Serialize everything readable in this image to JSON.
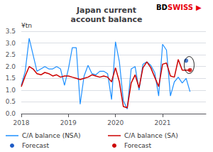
{
  "chart_data": {
    "type": "line",
    "title": "Japan current\naccount balance",
    "ylabel": "¥tn",
    "xlim": [
      2018.0,
      2021.92
    ],
    "ylim": [
      0.0,
      3.5
    ],
    "yticks": [
      {
        "value": 0.0,
        "label": "0.0"
      },
      {
        "value": 0.5,
        "label": "0.5"
      },
      {
        "value": 1.0,
        "label": "1.0"
      },
      {
        "value": 1.5,
        "label": "1.5"
      },
      {
        "value": 2.0,
        "label": "2.0"
      },
      {
        "value": 2.5,
        "label": "2.5"
      },
      {
        "value": 3.0,
        "label": "3.0"
      },
      {
        "value": 3.5,
        "label": "3.5"
      }
    ],
    "xticks": [
      2018,
      2019,
      2020,
      2021
    ],
    "grid": true,
    "legend": "lower left",
    "series": [
      {
        "name": "C/A balance (NSA)",
        "type": "line",
        "color": "#1e90ff",
        "x": [
          2018.0,
          2018.083,
          2018.167,
          2018.25,
          2018.333,
          2018.417,
          2018.5,
          2018.583,
          2018.667,
          2018.75,
          2018.833,
          2018.917,
          2019.0,
          2019.083,
          2019.167,
          2019.25,
          2019.333,
          2019.417,
          2019.5,
          2019.583,
          2019.667,
          2019.75,
          2019.833,
          2019.917,
          2020.0,
          2020.083,
          2020.167,
          2020.25,
          2020.333,
          2020.417,
          2020.5,
          2020.583,
          2020.667,
          2020.75,
          2020.833,
          2020.917,
          2021.0,
          2021.083,
          2021.167,
          2021.25,
          2021.333,
          2021.417,
          2021.5,
          2021.583
        ],
        "values": [
          1.2,
          1.8,
          3.2,
          2.5,
          1.8,
          1.9,
          2.0,
          1.9,
          1.9,
          2.0,
          1.9,
          1.2,
          1.9,
          2.8,
          2.8,
          0.4,
          1.6,
          2.05,
          1.7,
          1.65,
          1.8,
          1.8,
          1.7,
          0.6,
          3.05,
          2.2,
          0.55,
          0.2,
          1.9,
          2.0,
          1.0,
          2.1,
          2.2,
          2.05,
          1.75,
          0.75,
          2.95,
          2.7,
          0.75,
          1.35,
          1.55,
          1.3,
          1.5,
          0.93
        ]
      },
      {
        "name": "C/A balance (SA)",
        "type": "line",
        "color": "#cc0000",
        "x": [
          2018.0,
          2018.083,
          2018.167,
          2018.25,
          2018.333,
          2018.417,
          2018.5,
          2018.583,
          2018.667,
          2018.75,
          2018.833,
          2018.917,
          2019.0,
          2019.083,
          2019.167,
          2019.25,
          2019.333,
          2019.417,
          2019.5,
          2019.583,
          2019.667,
          2019.75,
          2019.833,
          2019.917,
          2020.0,
          2020.083,
          2020.167,
          2020.25,
          2020.333,
          2020.417,
          2020.5,
          2020.583,
          2020.667,
          2020.75,
          2020.833,
          2020.917,
          2021.0,
          2021.083,
          2021.167,
          2021.25,
          2021.333,
          2021.417,
          2021.5,
          2021.583
        ],
        "values": [
          1.15,
          1.6,
          2.0,
          1.9,
          1.7,
          1.65,
          1.75,
          1.7,
          1.6,
          1.65,
          1.55,
          1.6,
          1.6,
          1.55,
          1.5,
          1.45,
          1.5,
          1.55,
          1.65,
          1.6,
          1.55,
          1.6,
          1.55,
          1.35,
          1.95,
          1.35,
          0.3,
          0.25,
          1.3,
          1.65,
          1.1,
          1.95,
          2.2,
          1.95,
          1.55,
          1.15,
          2.1,
          2.15,
          1.6,
          1.55,
          2.3,
          1.85,
          1.85,
          1.85
        ]
      },
      {
        "name": "Forecast",
        "type": "scatter",
        "marker": "circle",
        "color": "#1e5bc6",
        "x": [
          2021.5
        ],
        "values": [
          2.25
        ]
      },
      {
        "name": "Forecast",
        "type": "scatter",
        "marker": "circle",
        "color": "#cc0000",
        "x": [
          2021.583
        ],
        "values": [
          1.85
        ]
      }
    ],
    "ellipse": {
      "center": [
        2021.565,
        2.065
      ],
      "width": 0.21,
      "height": 0.72,
      "color": "#000000"
    },
    "annotations": [
      {
        "text": "BD",
        "color": "#000000"
      },
      {
        "text": "SWISS",
        "color": "#e8000d"
      },
      {
        "text": "▶",
        "color": "#e8000d"
      }
    ]
  }
}
